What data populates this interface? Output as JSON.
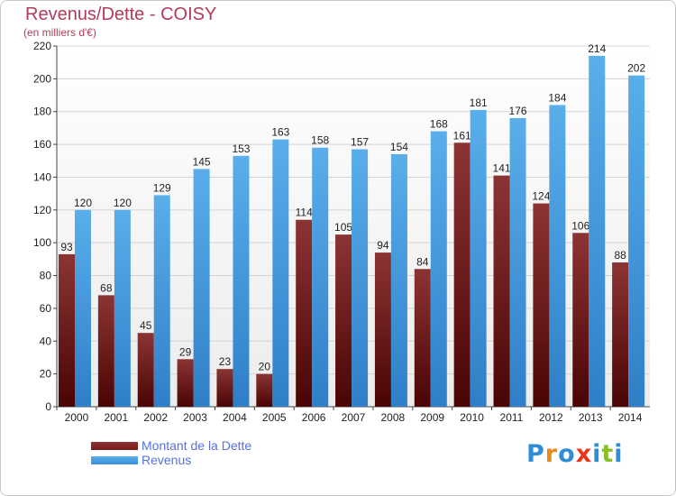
{
  "chart_data": {
    "type": "bar",
    "title": "Revenus/Dette - COISY",
    "subtitle": "(en milliers d'€)",
    "categories": [
      "2000",
      "2001",
      "2002",
      "2003",
      "2004",
      "2005",
      "2006",
      "2007",
      "2008",
      "2009",
      "2010",
      "2011",
      "2012",
      "2013",
      "2014"
    ],
    "series": [
      {
        "name": "Montant de la Dette",
        "color": "#7a1a1a",
        "values": [
          93,
          68,
          45,
          29,
          23,
          20,
          114,
          105,
          94,
          84,
          161,
          141,
          124,
          106,
          88
        ]
      },
      {
        "name": "Revenus",
        "color": "#3a8ed8",
        "values": [
          120,
          120,
          129,
          145,
          153,
          163,
          158,
          157,
          154,
          168,
          181,
          176,
          184,
          214,
          202
        ]
      }
    ],
    "yticks": [
      0,
      20,
      40,
      60,
      80,
      100,
      120,
      140,
      160,
      180,
      200,
      220
    ],
    "ylim": [
      0,
      220
    ],
    "grid": true,
    "legend_position": "bottom-left"
  },
  "logo": {
    "text": "Proxiti",
    "letter_colors": [
      "#2e8fd6",
      "#e88a1a",
      "#2e8fd6",
      "#e8341a",
      "#2e8fd6",
      "#8abf2a",
      "#2e8fd6"
    ]
  }
}
